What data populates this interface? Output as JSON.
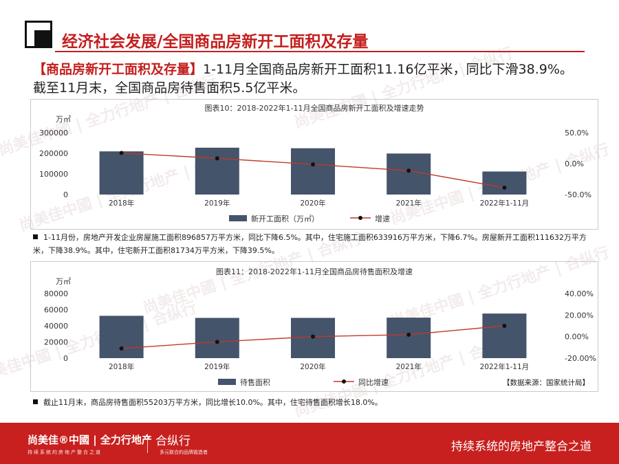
{
  "header": {
    "title": "经济社会发展/全国商品房新开工面积及存量"
  },
  "intro": {
    "tag": "【商品房新开工面积及存量】",
    "line1": "1-11月全国商品房新开工面积11.16亿平米，同比下滑38.9%。",
    "line2": "截至11月末，全国商品房待售面积5.5亿平米。"
  },
  "watermark": {
    "text": "尚美佳中國 | 全力行地产 | 合纵行"
  },
  "chart_data": [
    {
      "type": "bar",
      "title": "图表10：2018-2022年1-11月全国商品房新开工面积及增速走势",
      "unit": "万㎡",
      "categories": [
        "2018年",
        "2019年",
        "2020年",
        "2021年",
        "2022年1-11月"
      ],
      "series": [
        {
          "name": "新开工面积（万㎡）",
          "type": "bar",
          "axis": "left",
          "color": "#44546a",
          "values": [
            209342,
            227154,
            224433,
            198895,
            111632
          ]
        },
        {
          "name": "增速",
          "type": "line",
          "axis": "right",
          "color": "#c0392b",
          "values": [
            17.2,
            8.5,
            -1.2,
            -11.4,
            -38.9
          ]
        }
      ],
      "y_left": {
        "ticks": [
          "300000",
          "200000",
          "100000",
          "0"
        ],
        "lim": [
          0,
          300000
        ]
      },
      "y_right": {
        "ticks": [
          "50.0%",
          "0.0%",
          "-50.0%"
        ],
        "lim": [
          -50,
          50
        ]
      },
      "legend": "bottom"
    },
    {
      "type": "bar",
      "title": "图表11：2018-2022年1-11月全国商品房待售面积及增速",
      "unit": "万㎡",
      "categories": [
        "2018年",
        "2019年",
        "2020年",
        "2021年",
        "2022年1-11月"
      ],
      "series": [
        {
          "name": "待售面积",
          "type": "bar",
          "axis": "left",
          "color": "#44546a",
          "values": [
            52414,
            49821,
            49850,
            50183,
            55203
          ]
        },
        {
          "name": "同比增速",
          "type": "line",
          "axis": "right",
          "color": "#c0392b",
          "values": [
            -11.0,
            -4.9,
            0.0,
            1.8,
            10.0
          ]
        }
      ],
      "y_left": {
        "ticks": [
          "80000",
          "60000",
          "40000",
          "20000",
          "0"
        ],
        "lim": [
          0,
          80000
        ]
      },
      "y_right": {
        "ticks": [
          "40.00%",
          "20.00%",
          "0.00%",
          "-20.00%"
        ],
        "lim": [
          -20,
          40
        ]
      },
      "legend": "bottom",
      "source": "【数据来源：国家统计局】"
    }
  ],
  "notes": {
    "note1": "1-11月份，房地产开发企业房屋施工面积896857万平方米，同比下降6.5%。其中，住宅施工面积633916万平方米，下降6.7%。房屋新开工面积111632万平方米，下降38.9%。其中，住宅新开工面积81734万平方米，下降39.5%。",
    "note2": "截止11月末，商品房待售面积55203万平方米，同比增长10.0%。其中，住宅待售面积增长18.0%。"
  },
  "footer": {
    "brand": "尚美佳®中國 | 全力行地产",
    "brand_sub": "持续系统的房地产整合之道",
    "brand2": "合纵行",
    "brand2_sub": "多元联合的品牌锻造者",
    "slogan": "持续系统的房地产整合之道"
  }
}
